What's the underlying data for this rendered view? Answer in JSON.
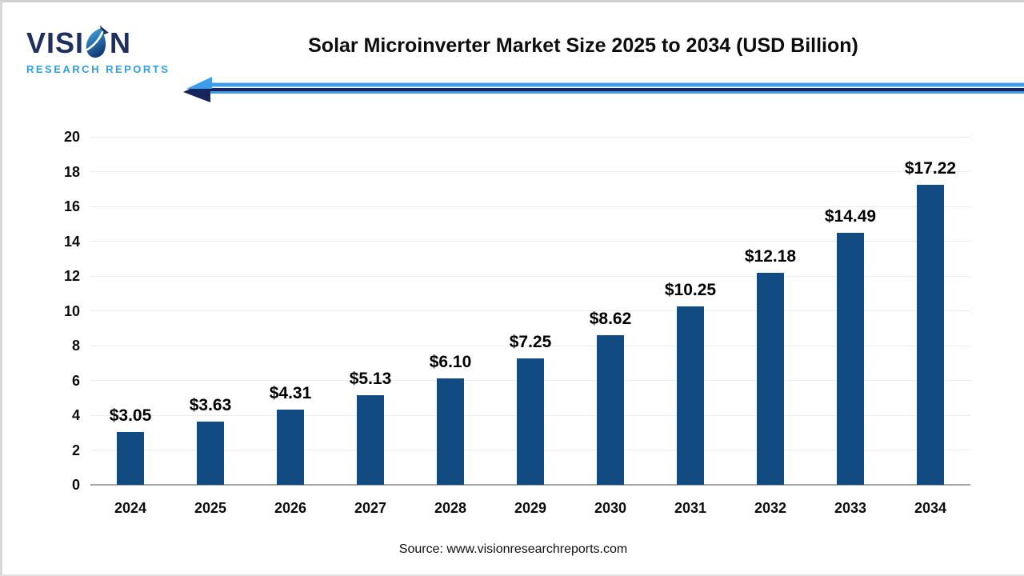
{
  "logo": {
    "name_pre": "VISI",
    "name_post": "N",
    "subtitle": "RESEARCH REPORTS"
  },
  "page": {
    "title": "Solar Microinverter Market Size 2025 to 2034 (USD Billion)",
    "source": "Source: www.visionresearchreports.com"
  },
  "colors": {
    "bar": "#124b82",
    "arrow_light_blue": "#3d9de8",
    "arrow_dark_navy": "#16265c",
    "logo_navy": "#20305c",
    "logo_blue": "#2f9fe2",
    "gridline": "#ececec",
    "axis_line": "#a6a6a6",
    "text": "#000000"
  },
  "chart_data": {
    "type": "bar",
    "title": "Solar Microinverter Market Size 2025 to 2034 (USD Billion)",
    "categories": [
      "2024",
      "2025",
      "2026",
      "2027",
      "2028",
      "2029",
      "2030",
      "2031",
      "2032",
      "2033",
      "2034"
    ],
    "values": [
      3.05,
      3.63,
      4.31,
      5.13,
      6.1,
      7.25,
      8.62,
      10.25,
      12.18,
      14.49,
      17.22
    ],
    "data_labels": [
      "$3.05",
      "$3.63",
      "$4.31",
      "$5.13",
      "$6.10",
      "$7.25",
      "$8.62",
      "$10.25",
      "$12.18",
      "$14.49",
      "$17.22"
    ],
    "xlabel": "",
    "ylabel": "",
    "ylim": [
      0,
      20
    ],
    "yticks": [
      0,
      2,
      4,
      6,
      8,
      10,
      12,
      14,
      16,
      18,
      20
    ],
    "grid": "horizontal",
    "legend": "none",
    "bar_color": "#124b82"
  }
}
